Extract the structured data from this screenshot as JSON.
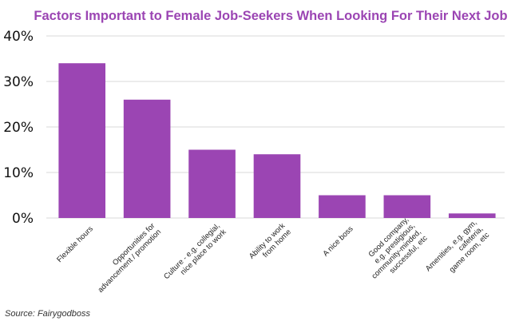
{
  "chart_data": {
    "type": "bar",
    "title": "Factors Important to Female Job-Seekers When Looking For Their Next Job",
    "categories": [
      [
        "Flexible hours"
      ],
      [
        "Opportunities for",
        "advancement / promotion"
      ],
      [
        "Culture - e.g. collegial,",
        "nice place to work"
      ],
      [
        "Ability to work",
        "from home"
      ],
      [
        "A nice boss"
      ],
      [
        "Good company,",
        "e.g. prestigious,",
        "community-minded,",
        "successful, etc"
      ],
      [
        "Amenities, e.g. gym,",
        "cafeteria,",
        "game room, etc"
      ]
    ],
    "values": [
      34,
      26,
      15,
      14,
      5,
      5,
      1
    ],
    "ylim": [
      0,
      40
    ],
    "yticks": [
      "0%",
      "10%",
      "20%",
      "30%",
      "40%"
    ],
    "xlabel": "",
    "ylabel": "",
    "grid": true,
    "legend": "none",
    "bar_color": "#9b45b3",
    "title_color": "#9b45b3",
    "grid_color": "#d9d9d9"
  },
  "source": "Source: Fairygodboss"
}
